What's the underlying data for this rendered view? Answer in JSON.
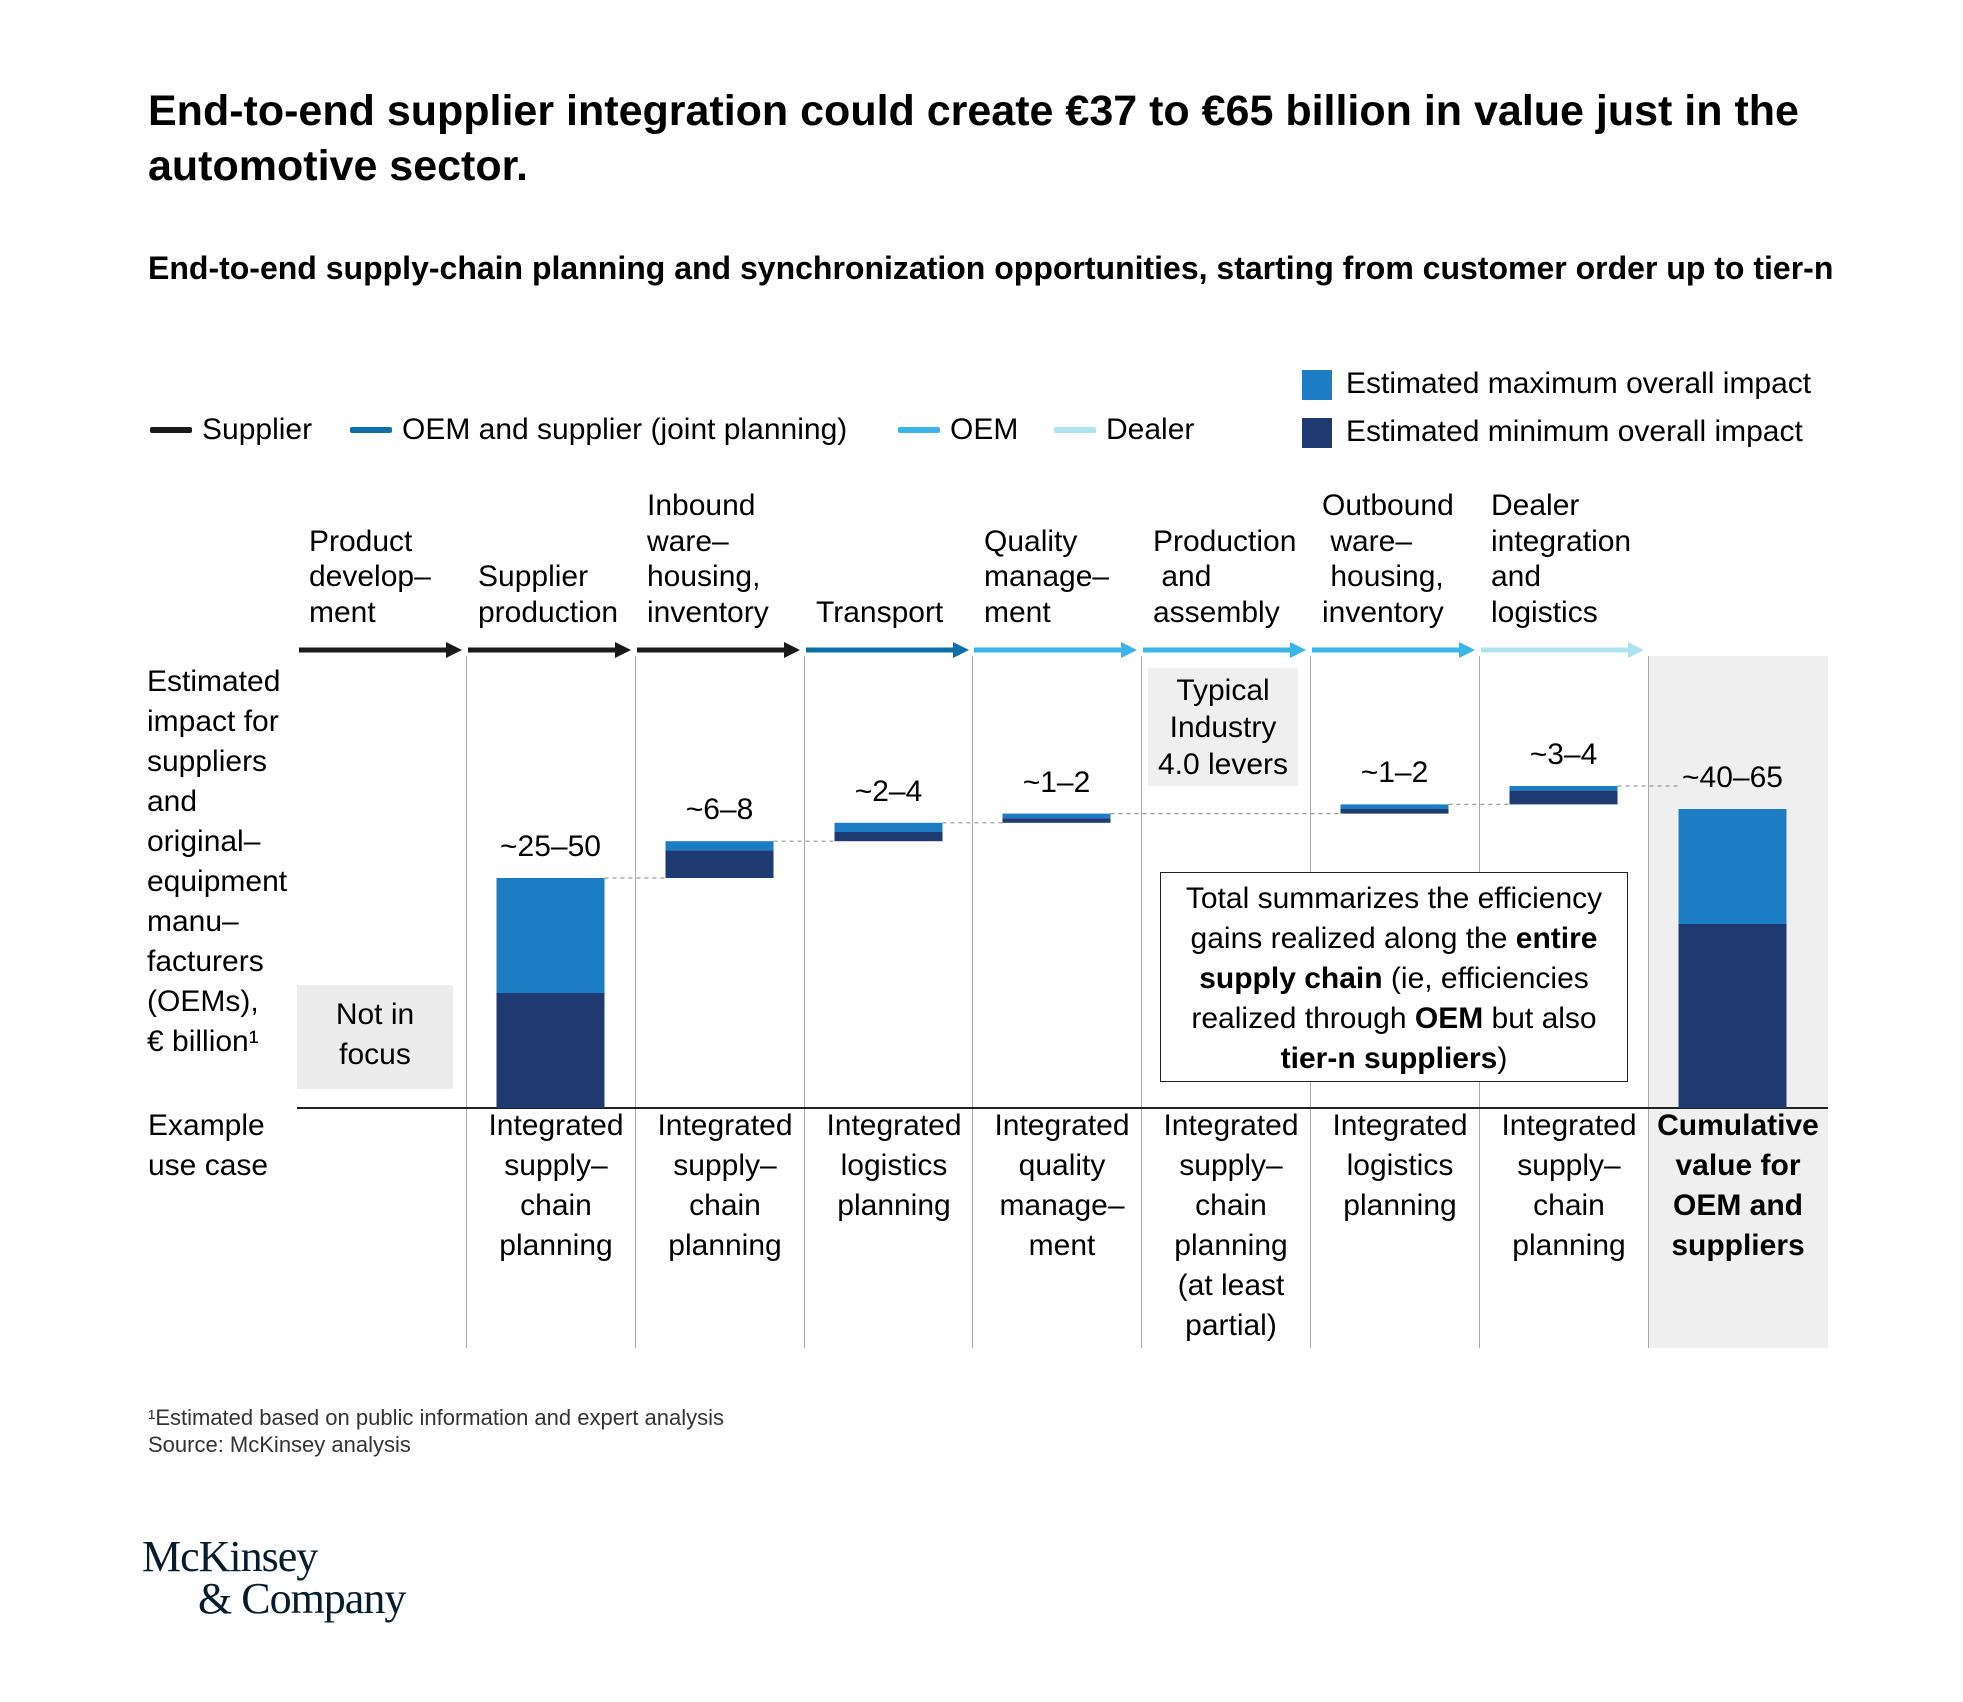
{
  "header": {
    "title": "End-to-end supplier integration could create €37 to €65 billion in value just in the automotive sector.",
    "subtitle": "End-to-end supply-chain planning and synchronization opportunities, starting from customer order up to tier-n"
  },
  "legend": {
    "lines": [
      {
        "label": "Supplier",
        "color": "#1a1a1a"
      },
      {
        "label": "OEM and supplier (joint planning)",
        "color": "#0e6fa8"
      },
      {
        "label": "OEM",
        "color": "#3bb4ea"
      },
      {
        "label": "Dealer",
        "color": "#aee2ee"
      }
    ],
    "impact": [
      {
        "label": "Estimated maximum overall impact",
        "color": "#1c7cc4"
      },
      {
        "label": "Estimated minimum overall impact",
        "color": "#1e3a70"
      }
    ]
  },
  "y_label": [
    "Estimated",
    "impact for",
    "suppliers",
    "and",
    "original–",
    "equipment",
    "manu–",
    "facturers",
    "(OEMs),",
    "€ billion¹"
  ],
  "use_case_label": [
    "Example",
    "use case"
  ],
  "not_in_focus": [
    "Not in",
    "focus"
  ],
  "typical_box": [
    "Typical",
    "Industry",
    "4.0 levers"
  ],
  "note": {
    "lines": [
      [
        {
          "t": "Total summarizes the efficiency",
          "b": false
        }
      ],
      [
        {
          "t": "gains realized along the ",
          "b": false
        },
        {
          "t": "entire",
          "b": true
        }
      ],
      [
        {
          "t": "supply chain",
          "b": true
        },
        {
          "t": " (ie, efficiencies",
          "b": false
        }
      ],
      [
        {
          "t": "realized through ",
          "b": false
        },
        {
          "t": "OEM",
          "b": true
        },
        {
          "t": " but also",
          "b": false
        }
      ],
      [
        {
          "t": "tier-n suppliers",
          "b": true
        },
        {
          "t": ")",
          "b": false
        }
      ]
    ]
  },
  "chart_data": {
    "type": "waterfall",
    "unit": "€ billion",
    "categories": [
      "Product development",
      "Supplier production",
      "Inbound warehousing, inventory",
      "Transport",
      "Quality management",
      "Production and assembly",
      "Outbound warehousing, inventory",
      "Dealer integration and logistics",
      "Cumulative value for OEM and suppliers"
    ],
    "stage_labels": [
      [
        "Product",
        "develop–",
        "ment"
      ],
      [
        "Supplier",
        "production"
      ],
      [
        "Inbound",
        "ware–",
        "housing,",
        "inventory"
      ],
      [
        "Transport"
      ],
      [
        "Quality",
        "manage–",
        "ment"
      ],
      [
        "Production",
        " and",
        "assembly"
      ],
      [
        "Outbound",
        " ware–",
        " housing,",
        "inventory"
      ],
      [
        "Dealer",
        "integration",
        "and",
        "logistics"
      ]
    ],
    "stage_owner": [
      "Supplier",
      "Supplier",
      "Supplier",
      "OEM and supplier (joint planning)",
      "OEM",
      "OEM",
      "OEM",
      "Dealer"
    ],
    "values": [
      {
        "label": "",
        "min": null,
        "max": null
      },
      {
        "label": "~25–50",
        "min": 25,
        "max": 50
      },
      {
        "label": "~6–8",
        "min": 6,
        "max": 8
      },
      {
        "label": "~2–4",
        "min": 2,
        "max": 4
      },
      {
        "label": "~1–2",
        "min": 1,
        "max": 2
      },
      {
        "label": "",
        "min": null,
        "max": null
      },
      {
        "label": "~1–2",
        "min": 1,
        "max": 2
      },
      {
        "label": "~3–4",
        "min": 3,
        "max": 4
      },
      {
        "label": "~40–65",
        "min": 40,
        "max": 65,
        "total": true
      }
    ],
    "use_cases": [
      [],
      [
        "Integrated",
        "supply–",
        "chain",
        "planning"
      ],
      [
        "Integrated",
        "supply–",
        "chain",
        "planning"
      ],
      [
        "Integrated",
        "logistics",
        "planning"
      ],
      [
        "Integrated",
        "quality",
        "manage–",
        "ment"
      ],
      [
        "Integrated",
        "supply–",
        "chain",
        "planning",
        "(at least",
        "partial)"
      ],
      [
        "Integrated",
        "logistics",
        "planning"
      ],
      [
        "Integrated",
        "supply–",
        "chain",
        "planning"
      ],
      [
        "Cumulative",
        "value for",
        "OEM and",
        "suppliers"
      ]
    ]
  },
  "footnote": [
    "¹Estimated based on public information and expert analysis",
    " Source: McKinsey analysis"
  ],
  "logo": [
    "McKinsey",
    "& Company"
  ]
}
